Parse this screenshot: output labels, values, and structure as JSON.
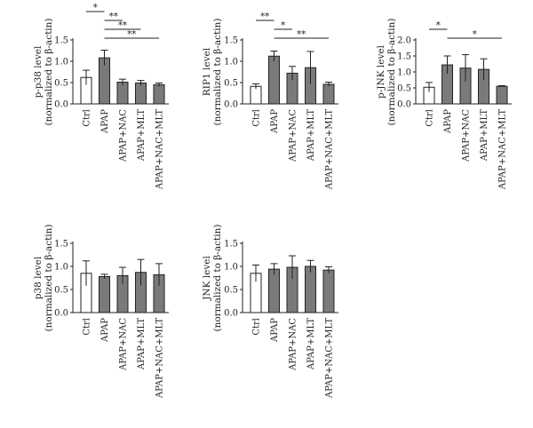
{
  "colors": {
    "ctrl_fill": "#ffffff",
    "treated_fill": "#7a7a7a",
    "stroke": "#222222"
  },
  "chart_data": [
    {
      "id": "p38",
      "type": "bar",
      "ylabel_line1": "p-p38 level",
      "ylabel_line2": "(normalized to β-actin)",
      "categories": [
        "Ctrl",
        "APAP",
        "APAP+NAC",
        "APAP+MLT",
        "APAP+NAC+MLT"
      ],
      "values": [
        0.62,
        1.08,
        0.51,
        0.49,
        0.45
      ],
      "errors": [
        0.17,
        0.18,
        0.07,
        0.06,
        0.04
      ],
      "ylim": [
        0,
        1.5
      ],
      "yticks": [
        "0.0",
        "0.5",
        "1.0",
        "1.5"
      ],
      "significance": [
        {
          "from": 0,
          "to": 1,
          "label": "*"
        },
        {
          "from": 1,
          "to": 2,
          "label": "**"
        },
        {
          "from": 1,
          "to": 3,
          "label": "**"
        },
        {
          "from": 1,
          "to": 4,
          "label": "**"
        }
      ]
    },
    {
      "id": "rip1",
      "type": "bar",
      "ylabel_line1": "RIP1 level",
      "ylabel_line2": "(normalized to β-actin)",
      "categories": [
        "Ctrl",
        "APAP",
        "APAP+NAC",
        "APAP+MLT",
        "APAP+NAC+MLT"
      ],
      "values": [
        0.41,
        1.12,
        0.72,
        0.85,
        0.46
      ],
      "errors": [
        0.06,
        0.12,
        0.16,
        0.38,
        0.05
      ],
      "ylim": [
        0,
        1.5
      ],
      "yticks": [
        "0.0",
        "0.5",
        "1.0",
        "1.5"
      ],
      "significance": [
        {
          "from": 0,
          "to": 1,
          "label": "**"
        },
        {
          "from": 1,
          "to": 2,
          "label": "*"
        },
        {
          "from": 1,
          "to": 4,
          "label": "**"
        }
      ]
    },
    {
      "id": "pjnk",
      "type": "bar",
      "ylabel_line1": "p-JNK level",
      "ylabel_line2": "(normalized to β-actin)",
      "categories": [
        "Ctrl",
        "APAP",
        "APAP+NAC",
        "APAP+MLT",
        "APAP+NAC+MLT"
      ],
      "values": [
        0.52,
        1.22,
        1.12,
        1.08,
        0.55
      ],
      "errors": [
        0.15,
        0.28,
        0.42,
        0.33,
        0.02
      ],
      "ylim": [
        0,
        2.0
      ],
      "yticks": [
        "0.0",
        "0.5",
        "1.0",
        "1.5",
        "2.0"
      ],
      "significance": [
        {
          "from": 0,
          "to": 1,
          "label": "*"
        },
        {
          "from": 1,
          "to": 4,
          "label": "*"
        }
      ]
    },
    {
      "id": "p38total",
      "type": "bar",
      "ylabel_line1": "p38 level",
      "ylabel_line2": "(normalized to β-actin)",
      "categories": [
        "Ctrl",
        "APAP",
        "APAP+NAC",
        "APAP+MLT",
        "APAP+NAC+MLT"
      ],
      "values": [
        0.85,
        0.78,
        0.8,
        0.87,
        0.82
      ],
      "errors": [
        0.27,
        0.05,
        0.18,
        0.28,
        0.24
      ],
      "ylim": [
        0,
        1.5
      ],
      "yticks": [
        "0.0",
        "0.5",
        "1.0",
        "1.5"
      ],
      "significance": []
    },
    {
      "id": "jnk",
      "type": "bar",
      "ylabel_line1": "JNK level",
      "ylabel_line2": "(normalized to β-actin)",
      "categories": [
        "Ctrl",
        "APAP",
        "APAP+NAC",
        "APAP+MLT",
        "APAP+NAC+MLT"
      ],
      "values": [
        0.85,
        0.94,
        0.98,
        1.0,
        0.92
      ],
      "errors": [
        0.18,
        0.12,
        0.25,
        0.13,
        0.07
      ],
      "ylim": [
        0,
        1.5
      ],
      "yticks": [
        "0.0",
        "0.5",
        "1.0",
        "1.5"
      ],
      "significance": []
    }
  ]
}
